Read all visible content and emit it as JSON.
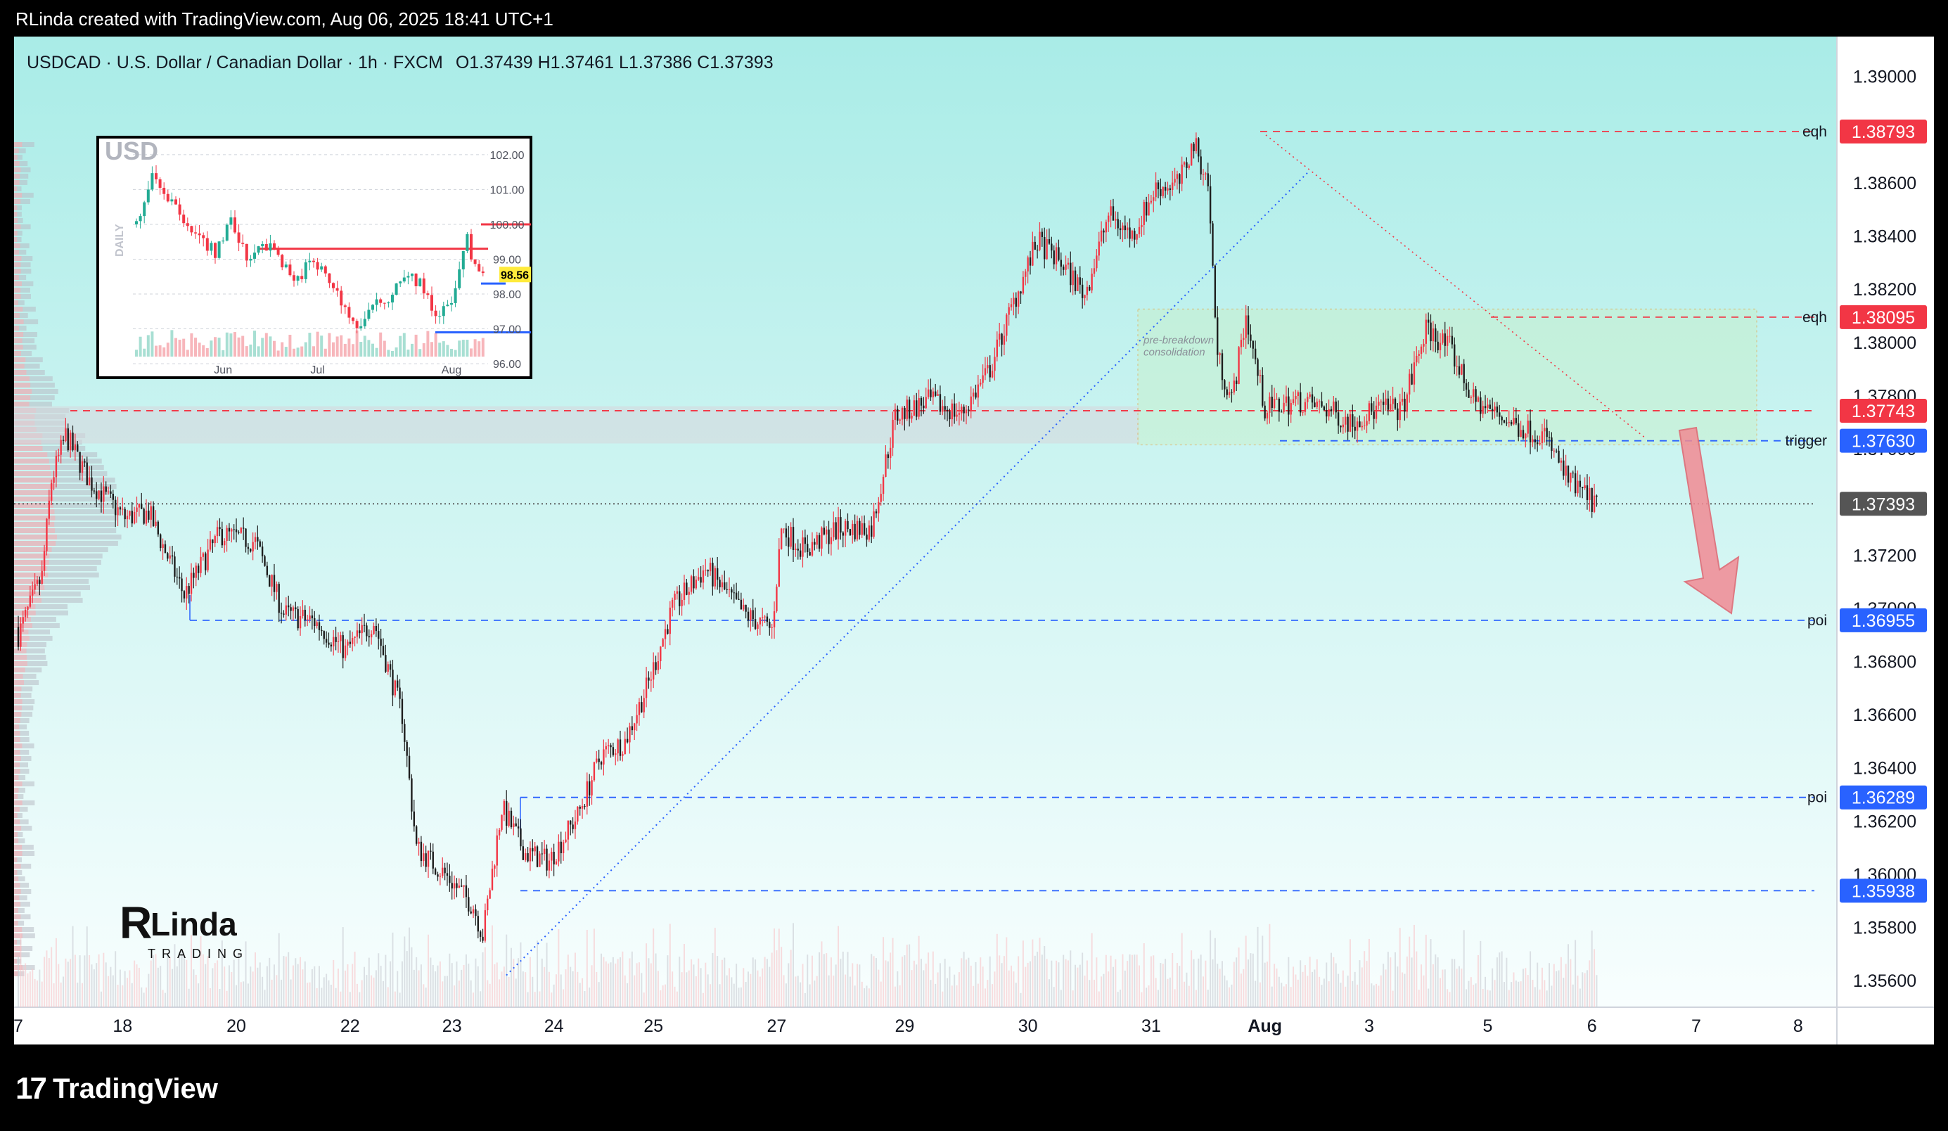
{
  "header": {
    "credit": "RLinda created with TradingView.com, Aug 06, 2025 18:41 UTC+1"
  },
  "footer": {
    "brand": "TradingView"
  },
  "colors": {
    "bull": "#f23645",
    "bear": "#1e1e1e",
    "blue_line": "#2962ff",
    "red_line": "#f23645",
    "green_zone": "#c8f0c8"
  },
  "chart_data": [
    {
      "type": "candlestick",
      "symbol_line": "USDCAD · U.S. Dollar / Canadian Dollar · 1h · FXCM",
      "ohlc": {
        "O": "1.37439",
        "H": "1.37461",
        "L": "1.37386",
        "C": "1.37393"
      },
      "ohlc_text": "O1.37439  H1.37461  L1.37386  C1.37393",
      "ylim": [
        1.355,
        1.3915
      ],
      "y_ticks": [
        "1.39000",
        "1.38600",
        "1.38400",
        "1.38200",
        "1.38000",
        "1.37800",
        "1.37600",
        "1.37200",
        "1.37000",
        "1.36800",
        "1.36600",
        "1.36400",
        "1.36200",
        "1.36000",
        "1.35800",
        "1.35600"
      ],
      "x_ticks": [
        "7",
        "18",
        "20",
        "22",
        "23",
        "24",
        "25",
        "27",
        "29",
        "30",
        "31",
        "Aug",
        "3",
        "5",
        "6",
        "7",
        "8"
      ],
      "price_tags": [
        {
          "label": "eqh",
          "value": "1.38793",
          "color": "#f23645"
        },
        {
          "label": "eqh",
          "value": "1.38095",
          "color": "#f23645"
        },
        {
          "label": "",
          "value": "1.37743",
          "color": "#f23645"
        },
        {
          "label": "trigger",
          "value": "1.37630",
          "color": "#2962ff"
        },
        {
          "label": "",
          "value": "1.37393",
          "color": "#555555"
        },
        {
          "label": "poi",
          "value": "1.36955",
          "color": "#2962ff"
        },
        {
          "label": "poi",
          "value": "1.36289",
          "color": "#2962ff"
        },
        {
          "label": "",
          "value": "1.35938",
          "color": "#2962ff"
        }
      ],
      "zone_label_1": "pre-breakdown",
      "zone_label_2": "consolidation",
      "anchors": [
        [
          0,
          1.369
        ],
        [
          10,
          1.3712
        ],
        [
          14,
          1.3748
        ],
        [
          20,
          1.3765
        ],
        [
          30,
          1.3748
        ],
        [
          45,
          1.3734
        ],
        [
          55,
          1.3736
        ],
        [
          70,
          1.3705
        ],
        [
          85,
          1.3728
        ],
        [
          100,
          1.3725
        ],
        [
          112,
          1.3698
        ],
        [
          125,
          1.3695
        ],
        [
          138,
          1.3684
        ],
        [
          150,
          1.3695
        ],
        [
          162,
          1.366
        ],
        [
          168,
          1.361
        ],
        [
          180,
          1.36
        ],
        [
          192,
          1.3588
        ],
        [
          196,
          1.3577
        ],
        [
          204,
          1.3625
        ],
        [
          214,
          1.3608
        ],
        [
          224,
          1.3605
        ],
        [
          236,
          1.3622
        ],
        [
          246,
          1.3645
        ],
        [
          256,
          1.365
        ],
        [
          266,
          1.3672
        ],
        [
          276,
          1.37
        ],
        [
          290,
          1.3715
        ],
        [
          306,
          1.3698
        ],
        [
          318,
          1.3692
        ],
        [
          322,
          1.373
        ],
        [
          332,
          1.3722
        ],
        [
          346,
          1.373
        ],
        [
          360,
          1.373
        ],
        [
          370,
          1.3772
        ],
        [
          384,
          1.3778
        ],
        [
          398,
          1.3773
        ],
        [
          410,
          1.379
        ],
        [
          420,
          1.3815
        ],
        [
          430,
          1.3838
        ],
        [
          440,
          1.383
        ],
        [
          450,
          1.3818
        ],
        [
          460,
          1.3848
        ],
        [
          470,
          1.384
        ],
        [
          480,
          1.3858
        ],
        [
          490,
          1.386
        ],
        [
          496,
          1.3875
        ],
        [
          502,
          1.386
        ],
        [
          506,
          1.3795
        ],
        [
          512,
          1.3778
        ],
        [
          518,
          1.381
        ],
        [
          526,
          1.3775
        ],
        [
          540,
          1.3778
        ],
        [
          552,
          1.3775
        ],
        [
          562,
          1.377
        ],
        [
          574,
          1.3775
        ],
        [
          584,
          1.3775
        ],
        [
          594,
          1.3805
        ],
        [
          604,
          1.3798
        ],
        [
          614,
          1.3778
        ],
        [
          624,
          1.3773
        ],
        [
          634,
          1.3768
        ],
        [
          644,
          1.3765
        ],
        [
          654,
          1.3748
        ],
        [
          666,
          1.3739
        ]
      ],
      "candle_count": 667,
      "x_tick_candles": [
        0,
        44,
        92,
        140,
        183,
        226,
        268,
        320,
        374,
        426,
        478,
        526,
        570,
        620,
        664,
        708,
        751
      ]
    },
    {
      "type": "candlestick",
      "title": "USD",
      "side_label": "DAILY",
      "ylim": [
        95.8,
        102.3
      ],
      "y_ticks": [
        "102.00",
        "101.00",
        "100.00",
        "99.00",
        "98.00",
        "97.00",
        "96.00"
      ],
      "x_ticks": [
        "Jun",
        "Jul",
        "Aug"
      ],
      "last_value": "98.56",
      "anchors": [
        [
          0,
          100.0
        ],
        [
          4,
          101.5
        ],
        [
          8,
          100.8
        ],
        [
          12,
          100.2
        ],
        [
          16,
          99.6
        ],
        [
          20,
          99.2
        ],
        [
          24,
          100.1
        ],
        [
          28,
          99.0
        ],
        [
          32,
          99.5
        ],
        [
          36,
          99.1
        ],
        [
          40,
          98.3
        ],
        [
          44,
          98.9
        ],
        [
          48,
          98.6
        ],
        [
          52,
          97.8
        ],
        [
          56,
          97.0
        ],
        [
          60,
          97.6
        ],
        [
          64,
          97.9
        ],
        [
          68,
          98.6
        ],
        [
          72,
          98.3
        ],
        [
          76,
          97.4
        ],
        [
          80,
          97.7
        ],
        [
          84,
          99.6
        ],
        [
          86,
          98.7
        ],
        [
          88,
          98.6
        ]
      ],
      "candle_count": 89,
      "x_tick_candles": [
        22,
        46,
        80
      ]
    }
  ]
}
